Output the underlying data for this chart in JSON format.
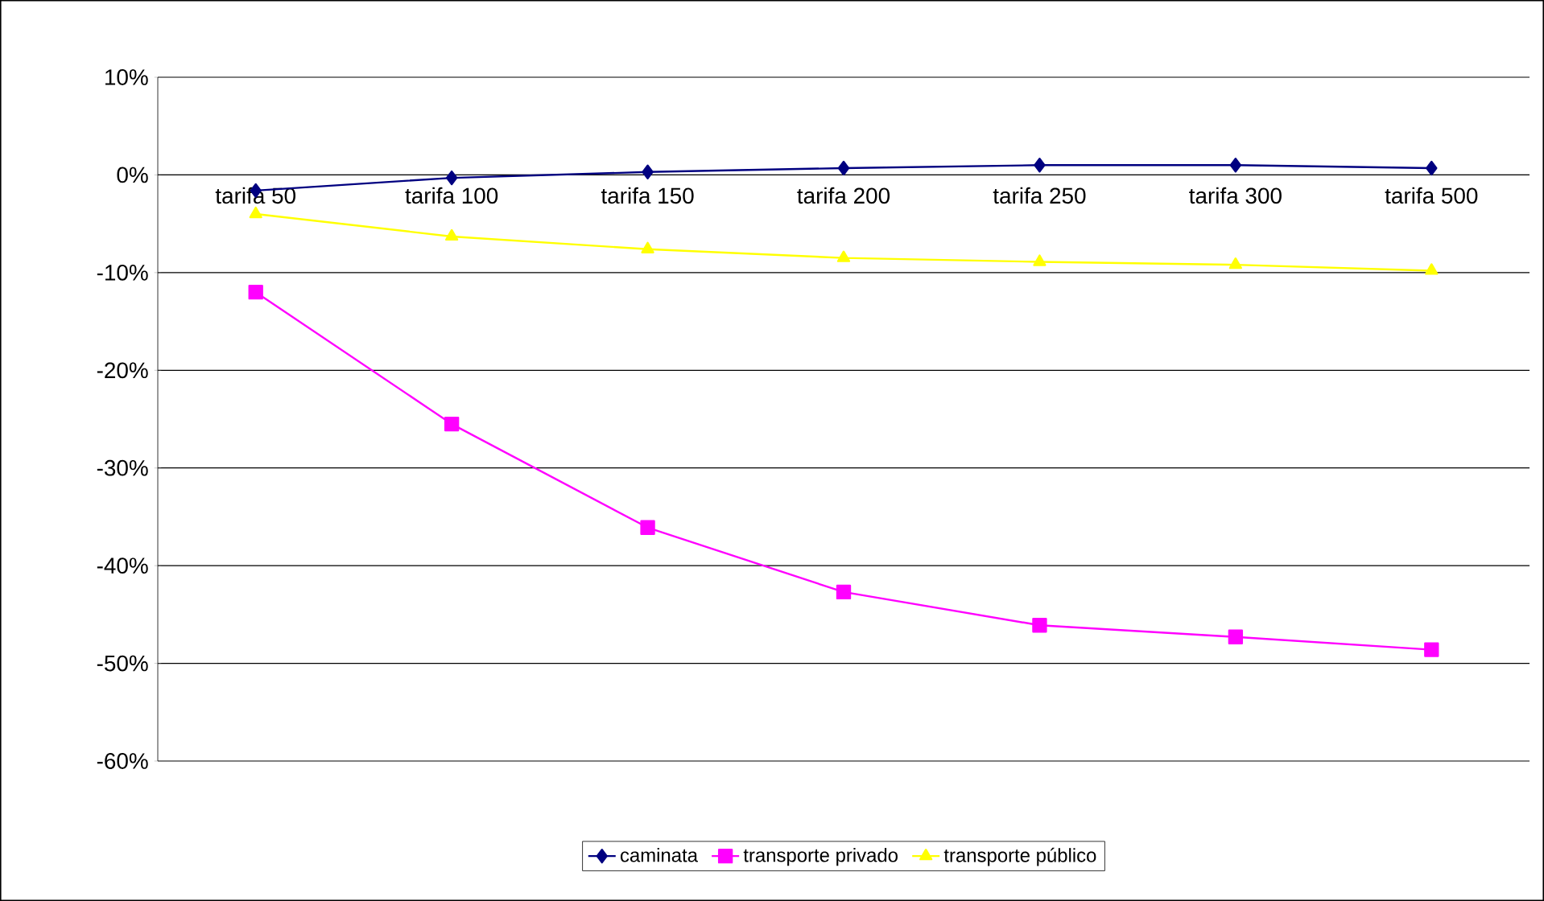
{
  "chart_data": {
    "type": "line",
    "categories": [
      "tarifa 50",
      "tarifa 100",
      "tarifa 150",
      "tarifa 200",
      "tarifa 250",
      "tarifa 300",
      "tarifa 500"
    ],
    "series": [
      {
        "name": "caminata",
        "color": "#000080",
        "marker": "diamond",
        "values": [
          -1.6,
          -0.3,
          0.3,
          0.7,
          1.0,
          1.0,
          0.7
        ]
      },
      {
        "name": "transporte privado",
        "color": "#ff00ff",
        "marker": "square",
        "values": [
          -12.0,
          -25.5,
          -36.1,
          -42.7,
          -46.1,
          -47.3,
          -48.6
        ]
      },
      {
        "name": "transporte público",
        "color": "#ffff00",
        "marker": "triangle",
        "values": [
          -4.0,
          -6.3,
          -7.6,
          -8.5,
          -8.9,
          -9.2,
          -9.8
        ]
      }
    ],
    "ylim": [
      -60,
      10
    ],
    "yticks": [
      {
        "value": 10,
        "label": "10%"
      },
      {
        "value": 0,
        "label": "0%"
      },
      {
        "value": -10,
        "label": "-10%"
      },
      {
        "value": -20,
        "label": "-20%"
      },
      {
        "value": -30,
        "label": "-30%"
      },
      {
        "value": -40,
        "label": "-40%"
      },
      {
        "value": -50,
        "label": "-50%"
      },
      {
        "value": -60,
        "label": "-60%"
      }
    ],
    "grid": "y",
    "legend": "bottom",
    "line_style": "solid"
  }
}
